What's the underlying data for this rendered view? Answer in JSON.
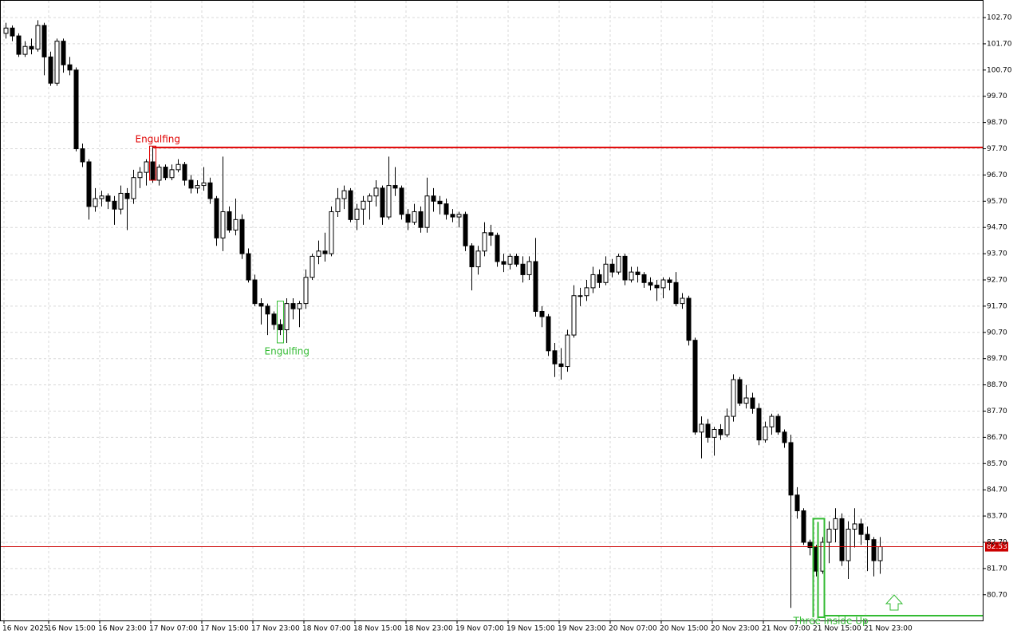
{
  "chart_data": {
    "type": "candlestick",
    "ylim": [
      79.72,
      103.37
    ],
    "yticks": [
      {
        "value": 102.7,
        "label": "102.70"
      },
      {
        "value": 101.7,
        "label": "101.70"
      },
      {
        "value": 100.7,
        "label": "100.70"
      },
      {
        "value": 99.7,
        "label": "99.70"
      },
      {
        "value": 98.7,
        "label": "98.70"
      },
      {
        "value": 97.7,
        "label": "97.70"
      },
      {
        "value": 96.7,
        "label": "96.70"
      },
      {
        "value": 95.7,
        "label": "95.70"
      },
      {
        "value": 94.7,
        "label": "94.70"
      },
      {
        "value": 93.7,
        "label": "93.70"
      },
      {
        "value": 92.7,
        "label": "92.70"
      },
      {
        "value": 91.7,
        "label": "91.70"
      },
      {
        "value": 90.7,
        "label": "90.70"
      },
      {
        "value": 89.7,
        "label": "89.70"
      },
      {
        "value": 88.7,
        "label": "88.70"
      },
      {
        "value": 87.7,
        "label": "87.70"
      },
      {
        "value": 86.7,
        "label": "86.70"
      },
      {
        "value": 85.7,
        "label": "85.70"
      },
      {
        "value": 84.7,
        "label": "84.70"
      },
      {
        "value": 83.7,
        "label": "83.70"
      },
      {
        "value": 82.7,
        "label": "82.70"
      },
      {
        "value": 81.7,
        "label": "81.70"
      },
      {
        "value": 80.7,
        "label": "80.70"
      }
    ],
    "grid": true,
    "up_color": "#ffffff",
    "down_color": "#000000",
    "outline_color": "#000000",
    "categories": [
      "16 Nov 2025",
      null,
      null,
      null,
      null,
      null,
      null,
      "16 Nov 15:00",
      null,
      null,
      null,
      null,
      null,
      null,
      null,
      "16 Nov 23:00",
      null,
      null,
      null,
      null,
      null,
      null,
      null,
      "17 Nov 07:00",
      null,
      null,
      null,
      null,
      null,
      null,
      null,
      "17 Nov 15:00",
      null,
      null,
      null,
      null,
      null,
      null,
      null,
      "17 Nov 23:00",
      null,
      null,
      null,
      null,
      null,
      null,
      null,
      "18 Nov 07:00",
      null,
      null,
      null,
      null,
      null,
      null,
      null,
      "18 Nov 15:00",
      null,
      null,
      null,
      null,
      null,
      null,
      null,
      "18 Nov 23:00",
      null,
      null,
      null,
      null,
      null,
      null,
      null,
      "19 Nov 07:00",
      null,
      null,
      null,
      null,
      null,
      null,
      null,
      "19 Nov 15:00",
      null,
      null,
      null,
      null,
      null,
      null,
      null,
      "19 Nov 23:00",
      null,
      null,
      null,
      null,
      null,
      null,
      null,
      "20 Nov 07:00",
      null,
      null,
      null,
      null,
      null,
      null,
      null,
      "20 Nov 15:00",
      null,
      null,
      null,
      null,
      null,
      null,
      null,
      "20 Nov 23:00",
      null,
      null,
      null,
      null,
      null,
      null,
      null,
      "21 Nov 07:00",
      null,
      null,
      null,
      null,
      null,
      null,
      null,
      "21 Nov 15:00",
      null,
      null,
      null,
      null,
      null,
      null,
      null,
      "21 Nov 23:00",
      null,
      null
    ],
    "ohlc": [
      [
        102.1,
        102.5,
        101.9,
        102.3
      ],
      [
        102.3,
        102.4,
        101.8,
        102.0
      ],
      [
        102.0,
        102.1,
        101.2,
        101.3
      ],
      [
        101.3,
        101.8,
        101.2,
        101.6
      ],
      [
        101.6,
        101.9,
        101.3,
        101.5
      ],
      [
        101.5,
        102.6,
        101.4,
        102.4
      ],
      [
        102.4,
        102.5,
        100.5,
        101.2
      ],
      [
        101.2,
        101.4,
        100.1,
        100.2
      ],
      [
        100.2,
        101.9,
        100.1,
        101.8
      ],
      [
        101.8,
        101.9,
        100.6,
        100.9
      ],
      [
        100.9,
        101.2,
        100.5,
        100.7
      ],
      [
        100.7,
        100.8,
        97.6,
        97.7
      ],
      [
        97.7,
        97.9,
        97.0,
        97.2
      ],
      [
        97.2,
        97.3,
        95.0,
        95.5
      ],
      [
        95.5,
        96.2,
        95.3,
        95.8
      ],
      [
        95.8,
        96.1,
        95.5,
        95.9
      ],
      [
        95.9,
        96.0,
        95.4,
        95.7
      ],
      [
        95.7,
        95.9,
        94.8,
        95.4
      ],
      [
        95.4,
        96.3,
        95.2,
        96.0
      ],
      [
        96.0,
        96.2,
        94.6,
        95.8
      ],
      [
        95.8,
        96.9,
        95.6,
        96.6
      ],
      [
        96.6,
        97.0,
        96.2,
        96.8
      ],
      [
        96.8,
        97.3,
        96.3,
        97.2
      ],
      [
        97.2,
        97.8,
        96.4,
        96.5
      ],
      [
        96.5,
        97.1,
        96.3,
        97.0
      ],
      [
        97.0,
        97.1,
        96.5,
        96.6
      ],
      [
        96.6,
        97.1,
        96.5,
        96.9
      ],
      [
        96.9,
        97.3,
        96.8,
        97.1
      ],
      [
        97.1,
        97.2,
        96.3,
        96.5
      ],
      [
        96.5,
        96.7,
        96.0,
        96.2
      ],
      [
        96.2,
        96.5,
        96.0,
        96.3
      ],
      [
        96.3,
        97.0,
        96.1,
        96.4
      ],
      [
        96.4,
        96.6,
        95.6,
        95.8
      ],
      [
        95.8,
        95.9,
        94.0,
        94.3
      ],
      [
        94.3,
        97.4,
        93.8,
        95.3
      ],
      [
        95.3,
        95.5,
        94.5,
        94.6
      ],
      [
        94.6,
        95.8,
        94.4,
        95.0
      ],
      [
        95.0,
        95.2,
        93.5,
        93.7
      ],
      [
        93.7,
        93.9,
        92.6,
        92.7
      ],
      [
        92.7,
        92.9,
        91.7,
        91.8
      ],
      [
        91.8,
        92.0,
        91.0,
        91.7
      ],
      [
        91.7,
        91.8,
        90.6,
        91.4
      ],
      [
        91.4,
        91.5,
        90.8,
        91.0
      ],
      [
        91.0,
        91.2,
        90.6,
        90.8
      ],
      [
        90.8,
        92.0,
        90.3,
        91.8
      ],
      [
        91.8,
        92.0,
        91.2,
        91.6
      ],
      [
        91.6,
        91.9,
        90.9,
        91.8
      ],
      [
        91.8,
        93.1,
        91.6,
        92.8
      ],
      [
        92.8,
        93.7,
        92.7,
        93.6
      ],
      [
        93.6,
        94.2,
        93.3,
        93.8
      ],
      [
        93.8,
        94.5,
        93.4,
        93.7
      ],
      [
        93.7,
        95.5,
        93.6,
        95.3
      ],
      [
        95.3,
        96.2,
        95.1,
        95.8
      ],
      [
        95.8,
        96.3,
        95.4,
        96.1
      ],
      [
        96.1,
        96.2,
        94.9,
        95.0
      ],
      [
        95.0,
        95.6,
        94.6,
        95.4
      ],
      [
        95.4,
        95.9,
        94.8,
        95.7
      ],
      [
        95.7,
        96.0,
        95.0,
        95.9
      ],
      [
        95.9,
        96.5,
        95.5,
        96.2
      ],
      [
        96.2,
        96.3,
        94.8,
        95.1
      ],
      [
        95.1,
        97.4,
        95.0,
        96.3
      ],
      [
        96.3,
        97.0,
        95.9,
        96.2
      ],
      [
        96.2,
        96.3,
        95.0,
        95.2
      ],
      [
        95.2,
        95.4,
        94.6,
        94.9
      ],
      [
        94.9,
        95.6,
        94.8,
        95.3
      ],
      [
        95.3,
        95.5,
        94.5,
        94.7
      ],
      [
        94.7,
        96.6,
        94.5,
        95.9
      ],
      [
        95.9,
        96.2,
        95.3,
        95.7
      ],
      [
        95.7,
        95.9,
        95.2,
        95.6
      ],
      [
        95.6,
        95.8,
        95.0,
        95.2
      ],
      [
        95.2,
        95.4,
        94.9,
        95.1
      ],
      [
        95.1,
        95.3,
        94.7,
        95.2
      ],
      [
        95.2,
        95.3,
        93.8,
        94.0
      ],
      [
        94.0,
        94.1,
        92.3,
        93.2
      ],
      [
        93.2,
        94.0,
        92.9,
        93.8
      ],
      [
        93.8,
        94.9,
        93.6,
        94.5
      ],
      [
        94.5,
        94.8,
        94.0,
        94.4
      ],
      [
        94.4,
        94.5,
        93.2,
        93.4
      ],
      [
        93.4,
        93.7,
        93.0,
        93.3
      ],
      [
        93.3,
        93.7,
        93.1,
        93.6
      ],
      [
        93.6,
        93.7,
        93.2,
        93.3
      ],
      [
        93.3,
        93.6,
        92.6,
        92.9
      ],
      [
        92.9,
        93.6,
        92.7,
        93.4
      ],
      [
        93.4,
        94.3,
        91.3,
        91.5
      ],
      [
        91.5,
        91.7,
        90.9,
        91.3
      ],
      [
        91.3,
        91.4,
        89.8,
        90.0
      ],
      [
        90.0,
        90.3,
        89.0,
        89.5
      ],
      [
        89.5,
        90.1,
        88.9,
        89.4
      ],
      [
        89.4,
        90.8,
        89.2,
        90.6
      ],
      [
        90.6,
        92.5,
        90.5,
        92.1
      ],
      [
        92.1,
        92.4,
        91.7,
        92.1
      ],
      [
        92.1,
        92.7,
        91.9,
        92.4
      ],
      [
        92.4,
        93.2,
        92.2,
        92.9
      ],
      [
        92.9,
        93.1,
        92.4,
        92.6
      ],
      [
        92.6,
        93.6,
        92.5,
        93.3
      ],
      [
        93.3,
        93.5,
        92.8,
        93.0
      ],
      [
        93.0,
        93.7,
        92.9,
        93.6
      ],
      [
        93.6,
        93.7,
        92.5,
        92.7
      ],
      [
        92.7,
        93.2,
        92.6,
        93.0
      ],
      [
        93.0,
        93.2,
        92.6,
        92.9
      ],
      [
        92.9,
        93.0,
        92.4,
        92.6
      ],
      [
        92.6,
        92.8,
        92.3,
        92.5
      ],
      [
        92.5,
        92.7,
        91.9,
        92.4
      ],
      [
        92.4,
        92.8,
        92.0,
        92.7
      ],
      [
        92.7,
        92.8,
        92.3,
        92.6
      ],
      [
        92.6,
        93.0,
        91.7,
        91.8
      ],
      [
        91.8,
        92.2,
        91.6,
        92.0
      ],
      [
        92.0,
        92.1,
        90.2,
        90.4
      ],
      [
        90.4,
        90.5,
        86.8,
        86.9
      ],
      [
        86.9,
        87.5,
        85.9,
        87.2
      ],
      [
        87.2,
        87.4,
        86.5,
        86.7
      ],
      [
        86.7,
        87.1,
        86.0,
        87.0
      ],
      [
        87.0,
        87.2,
        86.6,
        86.8
      ],
      [
        86.8,
        87.8,
        86.7,
        87.5
      ],
      [
        87.5,
        89.1,
        87.3,
        88.9
      ],
      [
        88.9,
        89.0,
        87.9,
        88.0
      ],
      [
        88.0,
        88.7,
        87.8,
        88.2
      ],
      [
        88.2,
        88.4,
        87.6,
        87.8
      ],
      [
        87.8,
        88.0,
        86.4,
        86.6
      ],
      [
        86.6,
        87.3,
        86.5,
        87.1
      ],
      [
        87.1,
        87.6,
        86.8,
        87.5
      ],
      [
        87.5,
        87.6,
        86.8,
        86.9
      ],
      [
        86.9,
        87.0,
        86.3,
        86.5
      ],
      [
        86.5,
        86.8,
        80.2,
        84.5
      ],
      [
        84.5,
        84.8,
        83.6,
        83.9
      ],
      [
        83.9,
        84.0,
        82.6,
        82.7
      ],
      [
        82.7,
        82.8,
        82.2,
        82.5
      ],
      [
        82.5,
        82.6,
        81.4,
        81.6
      ],
      [
        81.6,
        82.9,
        81.5,
        82.7
      ],
      [
        82.7,
        83.5,
        81.9,
        83.2
      ],
      [
        83.2,
        84.0,
        82.7,
        83.6
      ],
      [
        83.6,
        83.8,
        81.8,
        82.0
      ],
      [
        82.0,
        83.5,
        81.3,
        83.2
      ],
      [
        83.2,
        84.0,
        82.5,
        83.4
      ],
      [
        83.4,
        83.6,
        82.6,
        83.0
      ],
      [
        83.0,
        83.3,
        81.6,
        82.8
      ],
      [
        82.8,
        82.9,
        81.4,
        82.0
      ],
      [
        82.0,
        82.9,
        81.5,
        82.53
      ]
    ],
    "levels": [
      {
        "value": 97.75,
        "color": "#e00000"
      }
    ],
    "current_price": {
      "value": 82.53,
      "label": "82.53",
      "color": "#cc0000"
    },
    "annotations": [
      {
        "text": "Engulfing",
        "color": "#e00000"
      },
      {
        "text": "Engulfing",
        "color": "#33bb33"
      },
      {
        "text": "Three Inside Up",
        "color": "#33bb33"
      }
    ]
  }
}
